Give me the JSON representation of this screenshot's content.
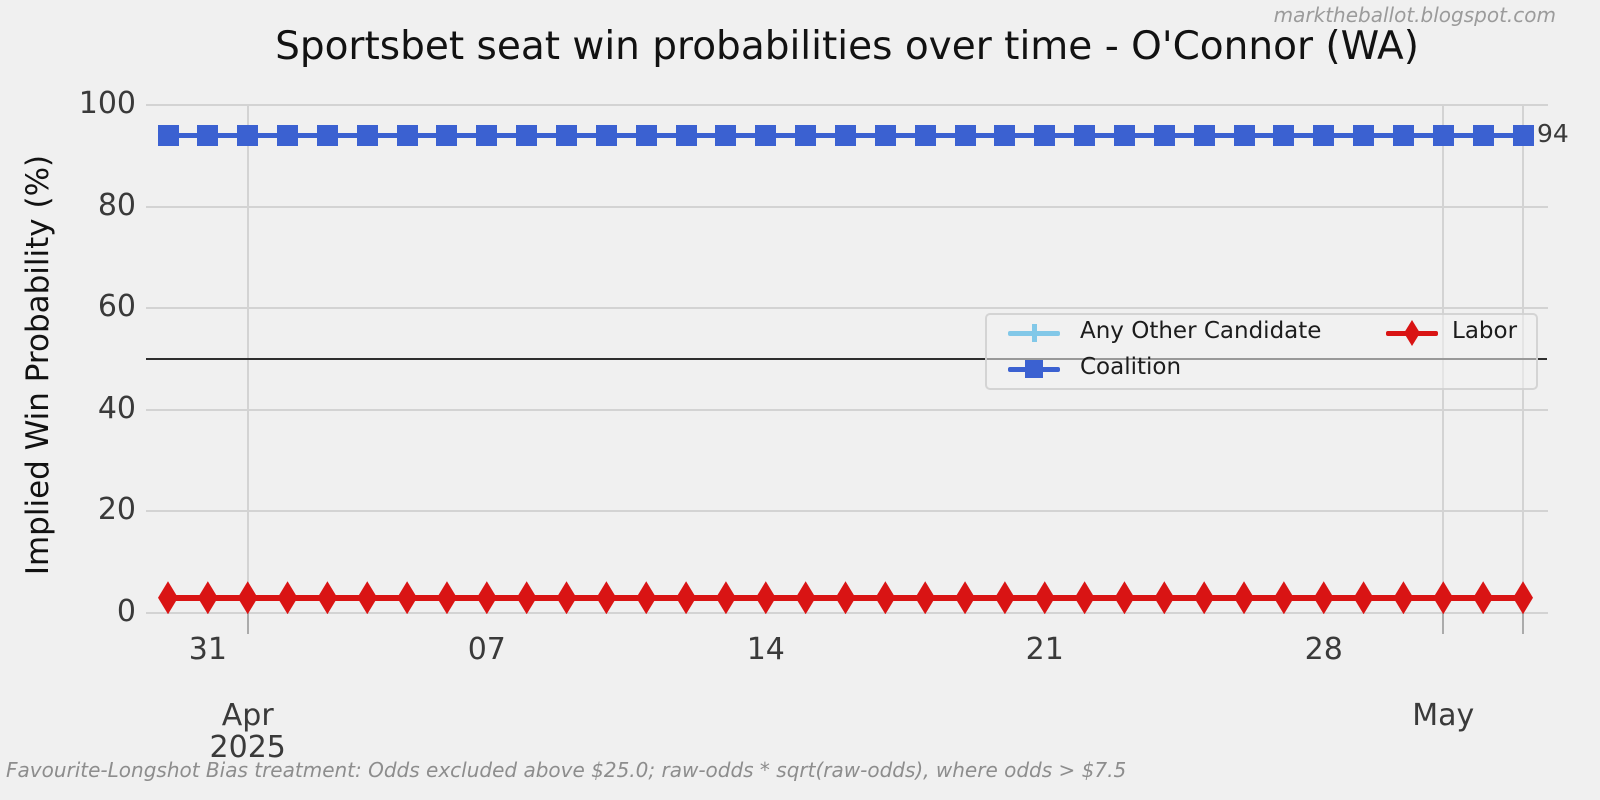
{
  "watermark": "marktheballot.blogspot.com",
  "title": "Sportsbet seat win probabilities over time - O'Connor (WA)",
  "footnote": "Favourite-Longshot Bias treatment: Odds excluded above $25.0; raw-odds * sqrt(raw-odds), where odds > $7.5",
  "y_axis": {
    "label": "Implied Win Probability (%)",
    "ticks": [
      0,
      20,
      40,
      60,
      80,
      100
    ],
    "range": [
      0,
      100
    ]
  },
  "x_axis": {
    "day_ticks": [
      {
        "date": "2025-03-31",
        "label": "31"
      },
      {
        "date": "2025-04-07",
        "label": "07"
      },
      {
        "date": "2025-04-14",
        "label": "14"
      },
      {
        "date": "2025-04-21",
        "label": "21"
      },
      {
        "date": "2025-04-28",
        "label": "28"
      }
    ],
    "month_ticks": [
      {
        "date": "2025-04-01",
        "label": "Apr",
        "sublabel": "2025"
      },
      {
        "date": "2025-05-01",
        "label": "May",
        "sublabel": ""
      }
    ],
    "end_tick_date": "2025-05-03"
  },
  "legend": [
    {
      "label": "Any Other Candidate",
      "color": "#82c8e8",
      "marker": "plus"
    },
    {
      "label": "Coalition",
      "color": "#3b61d1",
      "marker": "square"
    },
    {
      "label": "Labor",
      "color": "#d91414",
      "marker": "diamond"
    }
  ],
  "end_label": "94",
  "chart_data": {
    "type": "line",
    "title": "Sportsbet seat win probabilities over time - O'Connor (WA)",
    "ylabel": "Implied Win Probability (%)",
    "ylim": [
      0,
      100
    ],
    "x_start": "2025-03-30",
    "x_end": "2025-05-03",
    "x_freq": "daily",
    "grid": true,
    "reference_line_y": 50,
    "legend_position": "center-right",
    "end_annotation": {
      "series": "Coalition",
      "text": "94"
    },
    "series": [
      {
        "name": "Coalition",
        "color": "#3b61d1",
        "marker": "square",
        "values": [
          94,
          94,
          94,
          94,
          94,
          94,
          94,
          94,
          94,
          94,
          94,
          94,
          94,
          94,
          94,
          94,
          94,
          94,
          94,
          94,
          94,
          94,
          94,
          94,
          94,
          94,
          94,
          94,
          94,
          94,
          94,
          94,
          94,
          94,
          94
        ]
      },
      {
        "name": "Labor",
        "color": "#d91414",
        "marker": "diamond",
        "values": [
          3,
          3,
          3,
          3,
          3,
          3,
          3,
          3,
          3,
          3,
          3,
          3,
          3,
          3,
          3,
          3,
          3,
          3,
          3,
          3,
          3,
          3,
          3,
          3,
          3,
          3,
          3,
          3,
          3,
          3,
          3,
          3,
          3,
          3,
          3
        ]
      }
    ]
  }
}
